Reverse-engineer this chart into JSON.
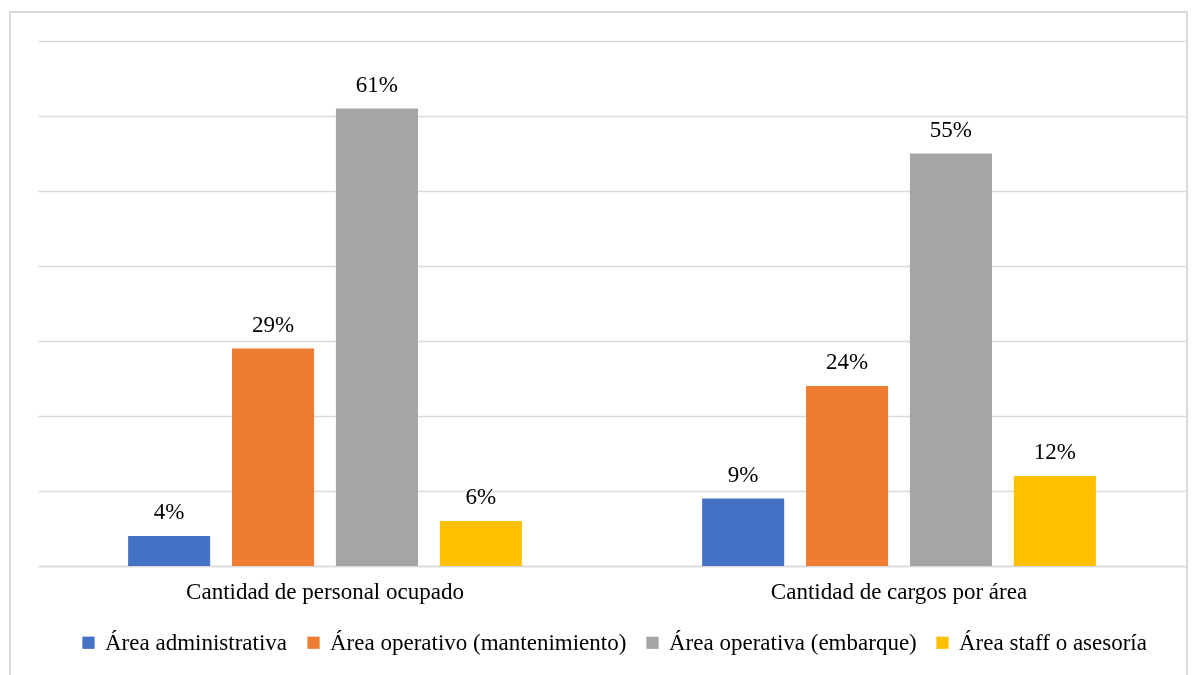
{
  "chart_data": {
    "type": "bar",
    "categories": [
      "Cantidad de personal ocupado",
      "Cantidad de cargos por área"
    ],
    "series": [
      {
        "name": "Área administrativa",
        "color": "#4472c4",
        "values": [
          4,
          9
        ],
        "value_labels": [
          "4%",
          "9%"
        ]
      },
      {
        "name": "Área operativo (mantenimiento)",
        "color": "#ed7d31",
        "values": [
          29,
          24
        ],
        "value_labels": [
          "29%",
          "24%"
        ]
      },
      {
        "name": "Área operativa (embarque)",
        "color": "#a5a5a5",
        "values": [
          61,
          55
        ],
        "value_labels": [
          "61%",
          "55%"
        ]
      },
      {
        "name": "Área staff o asesoría",
        "color": "#ffc000",
        "values": [
          6,
          12
        ],
        "value_labels": [
          "6%",
          "12%"
        ]
      }
    ],
    "ylim": [
      0,
      70
    ],
    "yticks": [
      0,
      10,
      20,
      30,
      40,
      50,
      60,
      70
    ],
    "tick_labels": "x",
    "grid": "y",
    "legend": "bottom"
  }
}
